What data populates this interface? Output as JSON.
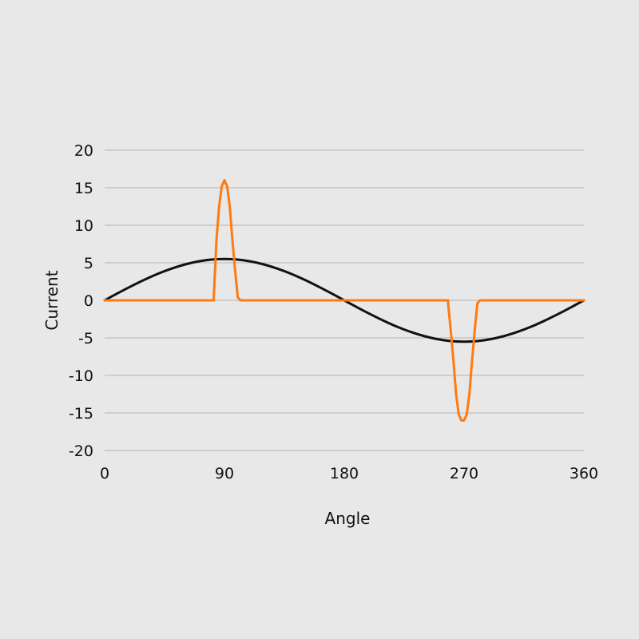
{
  "chart_data": {
    "type": "line",
    "title": "",
    "xlabel": "Angle",
    "ylabel": "Current",
    "xlim": [
      0,
      360
    ],
    "ylim": [
      -20,
      20
    ],
    "x_ticks": [
      0,
      90,
      180,
      270,
      360
    ],
    "x_tick_labels": [
      "0",
      "90",
      "180",
      "270",
      "360"
    ],
    "y_ticks": [
      20,
      15,
      10,
      5,
      0,
      -5,
      -10,
      -15,
      -20
    ],
    "y_tick_labels": [
      "20",
      "15",
      "10",
      "5",
      "0",
      "-5",
      "-10",
      "-15",
      "-20"
    ],
    "grid": true,
    "legend": "none",
    "series": [
      {
        "color": "#111111",
        "x": [
          0,
          10,
          20,
          30,
          40,
          50,
          60,
          70,
          80,
          90,
          100,
          110,
          120,
          130,
          140,
          150,
          160,
          170,
          180,
          190,
          200,
          210,
          220,
          230,
          240,
          250,
          260,
          270,
          280,
          290,
          300,
          310,
          320,
          330,
          340,
          350,
          360
        ],
        "y": [
          0,
          0.96,
          1.88,
          2.75,
          3.54,
          4.21,
          4.76,
          5.17,
          5.42,
          5.5,
          5.42,
          5.17,
          4.76,
          4.21,
          3.54,
          2.75,
          1.88,
          0.96,
          0,
          -0.96,
          -1.88,
          -2.75,
          -3.54,
          -4.21,
          -4.76,
          -5.17,
          -5.42,
          -5.5,
          -5.42,
          -5.17,
          -4.76,
          -4.21,
          -3.54,
          -2.75,
          -1.88,
          -0.96,
          0
        ]
      },
      {
        "color": "#ff7a10",
        "x": [
          0,
          82,
          82,
          84,
          86,
          88,
          90,
          92,
          94,
          96,
          98,
          100,
          102,
          110,
          180,
          258,
          258,
          260,
          262,
          264,
          266,
          268,
          270,
          272,
          274,
          276,
          278,
          280,
          282,
          290,
          360
        ],
        "y": [
          0,
          0,
          0.4,
          8,
          12.5,
          15.2,
          16,
          15.2,
          12.5,
          8,
          4,
          0.4,
          0,
          0,
          0,
          0,
          -0.4,
          -4,
          -8,
          -12.5,
          -15.2,
          -16,
          -16,
          -15.2,
          -12.5,
          -8,
          -4,
          -0.4,
          0,
          0,
          0
        ]
      }
    ]
  }
}
